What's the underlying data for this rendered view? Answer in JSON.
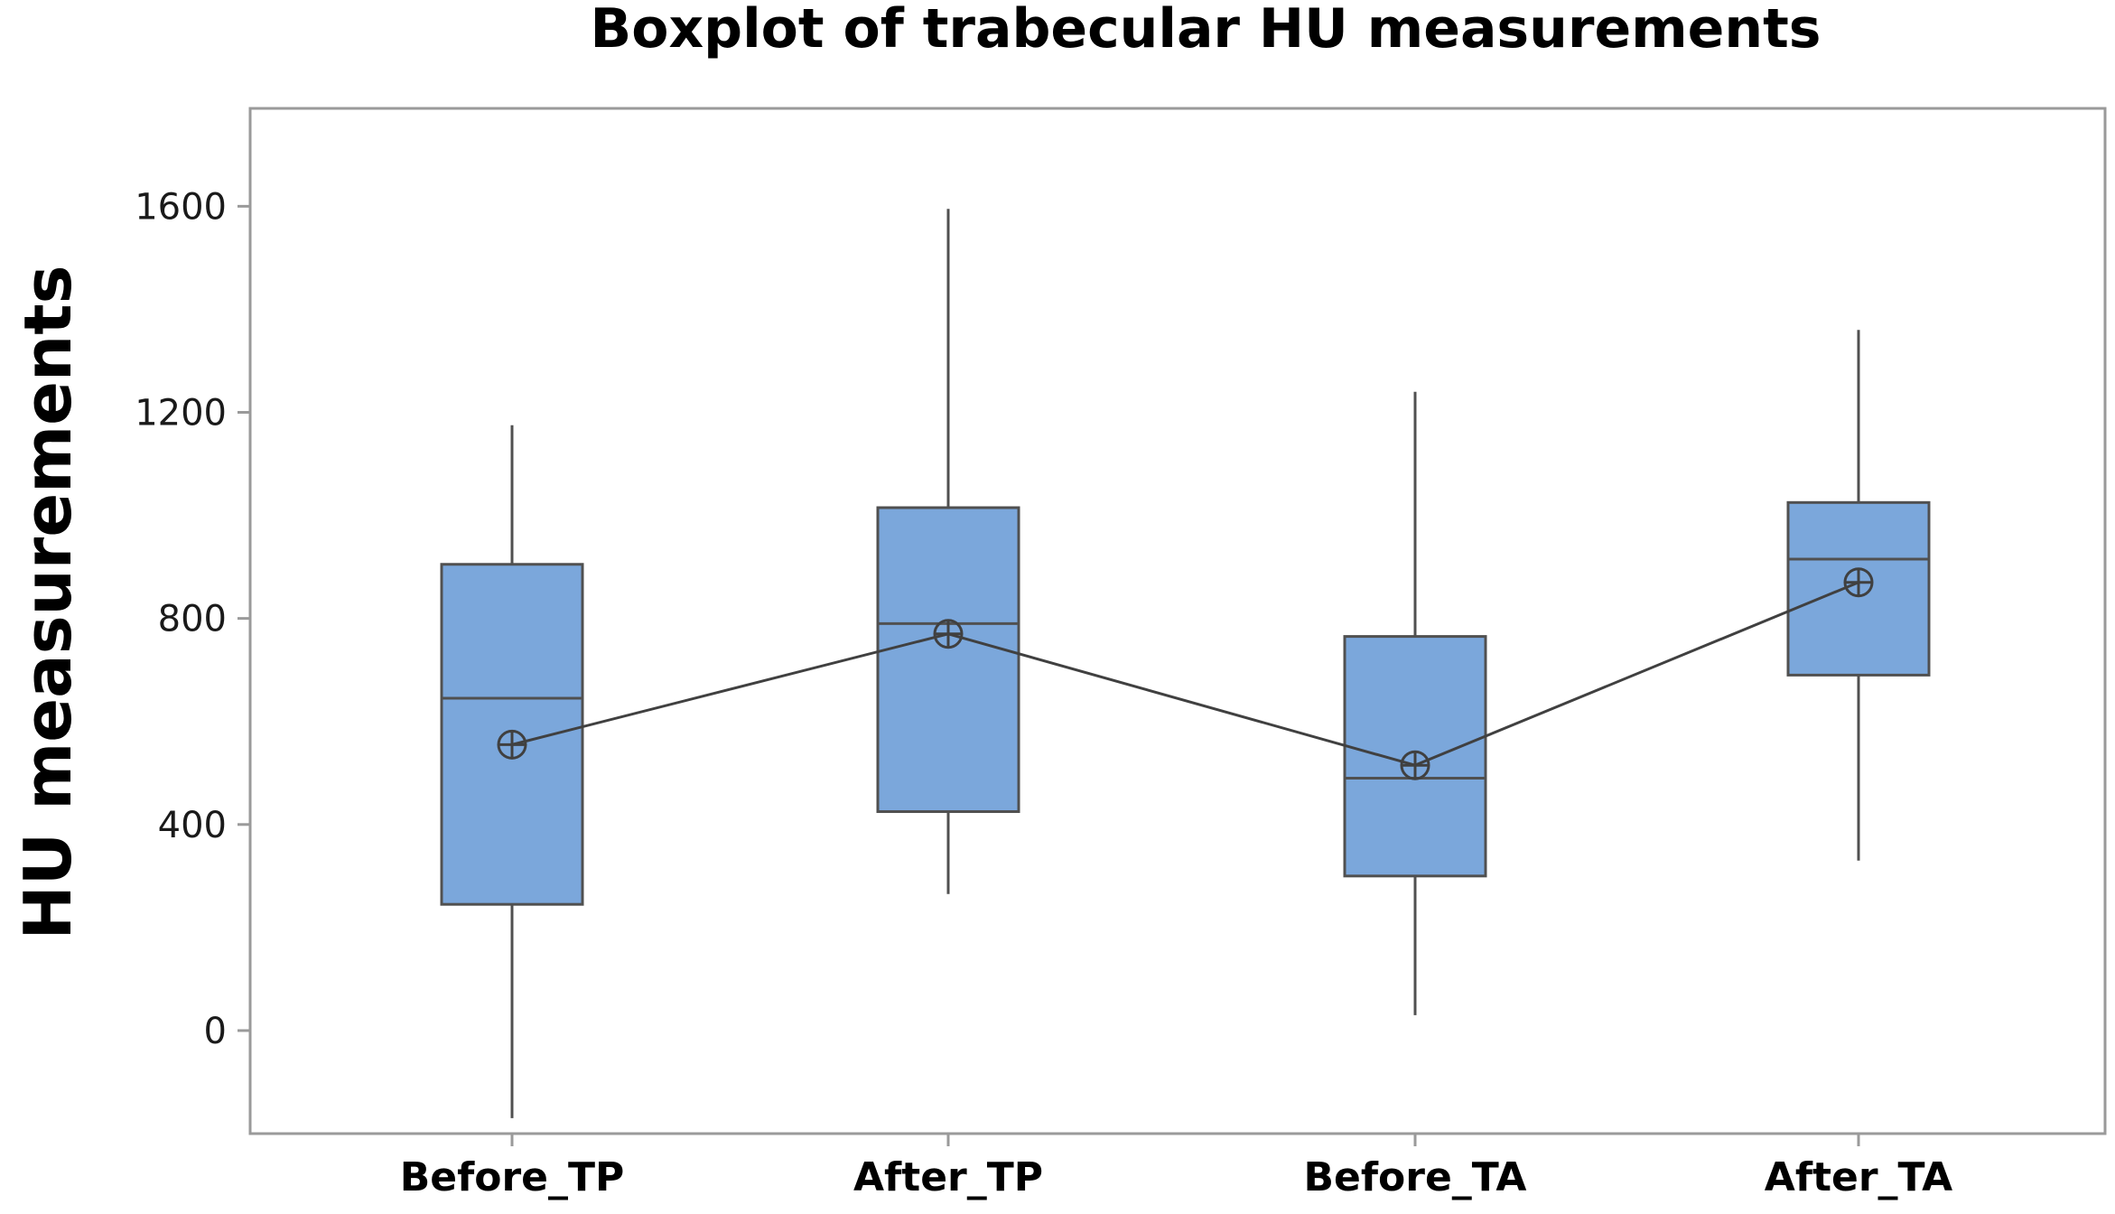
{
  "chart_data": {
    "type": "boxplot",
    "title": "Boxplot of trabecular HU measurements",
    "xlabel": "",
    "ylabel": "HU measurements",
    "ylim": [
      -200,
      1790
    ],
    "yticks": [
      0,
      400,
      800,
      1200,
      1600
    ],
    "categories": [
      "Before_TP",
      "After_TP",
      "Before_TA",
      "After_TA"
    ],
    "boxes": [
      {
        "category": "Before_TP",
        "min": -170,
        "q1": 245,
        "median": 645,
        "q3": 905,
        "max": 1175,
        "mean": 555
      },
      {
        "category": "After_TP",
        "min": 265,
        "q1": 425,
        "median": 790,
        "q3": 1015,
        "max": 1595,
        "mean": 770
      },
      {
        "category": "Before_TA",
        "min": 30,
        "q1": 300,
        "median": 490,
        "q3": 765,
        "max": 1240,
        "mean": 515
      },
      {
        "category": "After_TA",
        "min": 330,
        "q1": 690,
        "median": 915,
        "q3": 1025,
        "max": 1360,
        "mean": 870
      }
    ],
    "mean_line": true,
    "grid": false,
    "colors": {
      "box_fill": "#7ba7db",
      "box_stroke": "#505050",
      "line": "#404040",
      "frame": "#9a9a9a"
    }
  }
}
